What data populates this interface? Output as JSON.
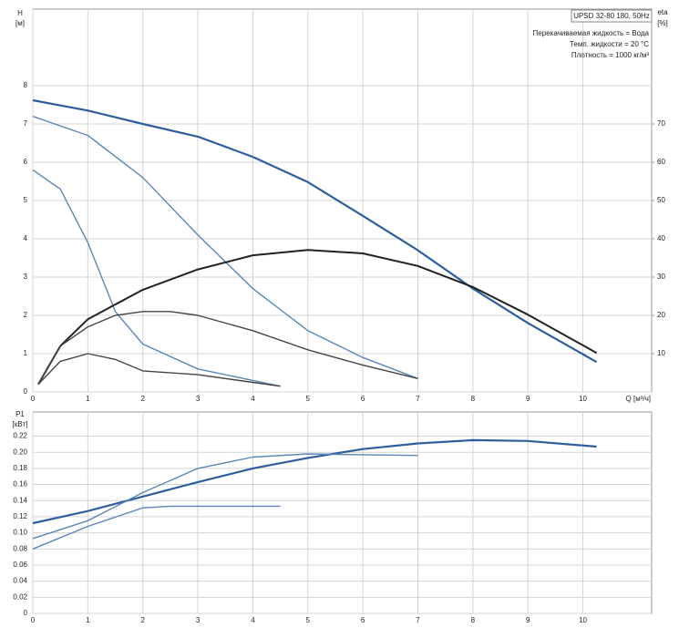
{
  "chart_data": [
    {
      "type": "line",
      "y_label": "H",
      "y_unit": "[м]",
      "y2_label": "eta",
      "y2_unit": "[%]",
      "x_label": "Q [м³/ч]",
      "legend_title": "UPSD 32-80 180, 50Hz",
      "notes": [
        "Перекачиваемая жидкость = Вода",
        "Темп. жидкости = 20 °C",
        "Плотность = 1000 кг/м³"
      ],
      "xlim": [
        0,
        11.25
      ],
      "xticks": [
        0,
        1,
        2,
        3,
        4,
        5,
        6,
        7,
        8,
        9,
        10
      ],
      "ylim": [
        0,
        10
      ],
      "yticks": [
        0,
        1,
        2,
        3,
        4,
        5,
        6,
        7,
        8
      ],
      "y2lim": [
        0,
        100
      ],
      "y2ticks": [
        10,
        20,
        30,
        40,
        50,
        60,
        70
      ],
      "grid": true,
      "series": [
        {
          "color": "#2d5f9e",
          "width": 2.2,
          "x": [
            0,
            1,
            2,
            3,
            4,
            5,
            6,
            7,
            8,
            9,
            10.25
          ],
          "values": [
            7.62,
            7.35,
            7.0,
            6.67,
            6.14,
            5.48,
            4.6,
            3.7,
            2.7,
            1.8,
            0.78
          ]
        },
        {
          "color": "#5a86b8",
          "width": 1.4,
          "x": [
            0,
            1,
            2,
            3,
            4,
            5,
            6,
            7
          ],
          "values": [
            7.2,
            6.7,
            5.6,
            4.1,
            2.7,
            1.6,
            0.9,
            0.35
          ]
        },
        {
          "color": "#5a86b8",
          "width": 1.4,
          "x": [
            0,
            0.5,
            1,
            1.5,
            2,
            3,
            4,
            4.5
          ],
          "values": [
            5.8,
            5.3,
            3.9,
            2.1,
            1.25,
            0.6,
            0.3,
            0.15
          ]
        },
        {
          "color": "#222222",
          "width": 2,
          "axis": "y2",
          "x": [
            0.1,
            0.5,
            1,
            2,
            3,
            4,
            5,
            6,
            7,
            8,
            9,
            10.25
          ],
          "values": [
            2,
            12,
            19,
            26.7,
            32,
            35.7,
            37.1,
            36.2,
            32.9,
            27.4,
            20.2,
            10.2
          ]
        },
        {
          "color": "#444444",
          "width": 1.4,
          "axis": "y2",
          "x": [
            0.1,
            0.5,
            1,
            1.5,
            2,
            2.5,
            3,
            4,
            5,
            6,
            7
          ],
          "values": [
            2,
            12,
            17,
            20,
            21,
            21,
            20,
            16,
            11,
            7,
            3.5
          ]
        },
        {
          "color": "#444444",
          "width": 1.4,
          "axis": "y2",
          "x": [
            0.1,
            0.5,
            1,
            1.5,
            2,
            3,
            4,
            4.5
          ],
          "values": [
            2,
            8,
            10,
            8.5,
            5.5,
            4.5,
            2.5,
            1.5
          ]
        }
      ]
    },
    {
      "type": "line",
      "y_label": "P1",
      "y_unit": "[кВт]",
      "xlim": [
        0,
        11.25
      ],
      "xticks": [
        0,
        1,
        2,
        3,
        4,
        5,
        6,
        7,
        8,
        9,
        10
      ],
      "ylim": [
        0,
        0.25
      ],
      "yticks": [
        0,
        0.02,
        0.04,
        0.06,
        0.08,
        {
          "value": 0.1,
          "label": "0.10"
        },
        0.12,
        0.14,
        0.16,
        0.18,
        {
          "value": 0.2,
          "label": "0.20"
        },
        0.22
      ],
      "grid": true,
      "series": [
        {
          "color": "#2d5f9e",
          "width": 2.2,
          "x": [
            0,
            1,
            2,
            3,
            4,
            5,
            6,
            7,
            8,
            9,
            10.25
          ],
          "values": [
            0.112,
            0.127,
            0.145,
            0.163,
            0.18,
            0.193,
            0.204,
            0.211,
            0.215,
            0.214,
            0.207
          ]
        },
        {
          "color": "#5a86b8",
          "width": 1.4,
          "x": [
            0,
            1,
            2,
            3,
            4,
            5,
            6,
            7
          ],
          "values": [
            0.093,
            0.115,
            0.15,
            0.18,
            0.194,
            0.198,
            0.197,
            0.196
          ]
        },
        {
          "color": "#5a86b8",
          "width": 1.4,
          "x": [
            0,
            1,
            2,
            2.5,
            3,
            4,
            4.5
          ],
          "values": [
            0.08,
            0.108,
            0.131,
            0.133,
            0.133,
            0.133,
            0.133
          ]
        }
      ]
    }
  ]
}
